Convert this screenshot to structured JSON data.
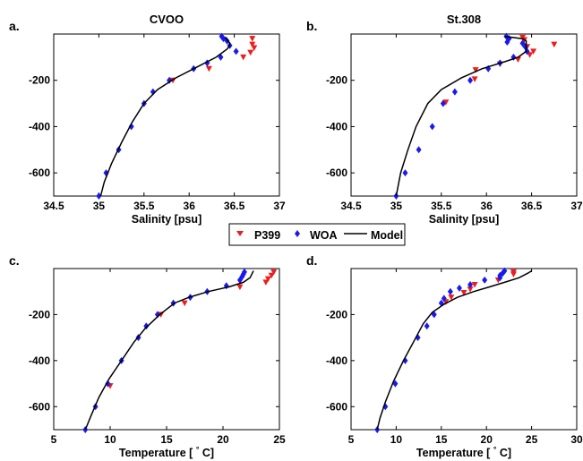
{
  "legend": {
    "items": [
      {
        "label": "P399",
        "marker": "triangle-down",
        "color": "#ee1c1c"
      },
      {
        "label": "WOA",
        "marker": "diamond",
        "color": "#1a1aee"
      },
      {
        "label": "Model",
        "marker": "line",
        "color": "#000000"
      }
    ]
  },
  "chart_data": [
    {
      "type": "scatter",
      "panel": "a.",
      "title": "CVOO",
      "xlabel": "Salinity [psu]",
      "ylabel": "",
      "xlim": [
        34.5,
        37
      ],
      "ylim": [
        -700,
        0
      ],
      "xticks": [
        34.5,
        35,
        35.5,
        36,
        36.5,
        37
      ],
      "yticks": [
        -200,
        -400,
        -600
      ],
      "series": [
        {
          "name": "P399",
          "marker": "triangle-down",
          "color": "#ee1c1c",
          "points": [
            [
              36.7,
              -20
            ],
            [
              36.7,
              -45
            ],
            [
              36.72,
              -60
            ],
            [
              36.68,
              -80
            ],
            [
              36.6,
              -100
            ],
            [
              36.22,
              -150
            ],
            [
              35.82,
              -200
            ]
          ]
        },
        {
          "name": "WOA",
          "marker": "diamond",
          "color": "#1a1aee",
          "points": [
            [
              36.36,
              -10
            ],
            [
              36.38,
              -20
            ],
            [
              36.42,
              -30
            ],
            [
              36.45,
              -50
            ],
            [
              36.52,
              -75
            ],
            [
              36.35,
              -100
            ],
            [
              36.2,
              -125
            ],
            [
              36.05,
              -150
            ],
            [
              35.78,
              -200
            ],
            [
              35.6,
              -250
            ],
            [
              35.5,
              -300
            ],
            [
              35.36,
              -400
            ],
            [
              35.22,
              -500
            ],
            [
              35.08,
              -600
            ],
            [
              35.0,
              -700
            ]
          ]
        },
        {
          "name": "Model",
          "type": "line",
          "color": "#000000",
          "points": [
            [
              36.4,
              -12
            ],
            [
              36.42,
              -25
            ],
            [
              36.45,
              -40
            ],
            [
              36.45,
              -50
            ],
            [
              36.42,
              -65
            ],
            [
              36.3,
              -100
            ],
            [
              36.1,
              -140
            ],
            [
              35.85,
              -190
            ],
            [
              35.65,
              -240
            ],
            [
              35.5,
              -300
            ],
            [
              35.37,
              -380
            ],
            [
              35.25,
              -470
            ],
            [
              35.14,
              -560
            ],
            [
              35.06,
              -640
            ],
            [
              35.02,
              -700
            ]
          ]
        }
      ]
    },
    {
      "type": "scatter",
      "panel": "b.",
      "title": "St.308",
      "xlabel": "Salinity [psu]",
      "ylabel": "",
      "xlim": [
        34.5,
        37
      ],
      "ylim": [
        -700,
        0
      ],
      "xticks": [
        34.5,
        35,
        35.5,
        36,
        36.5,
        37
      ],
      "yticks": [
        -200,
        -400,
        -600
      ],
      "series": [
        {
          "name": "P399",
          "marker": "triangle-down",
          "color": "#ee1c1c",
          "points": [
            [
              36.4,
              -15
            ],
            [
              36.42,
              -25
            ],
            [
              36.75,
              -45
            ],
            [
              36.45,
              -55
            ],
            [
              36.52,
              -75
            ],
            [
              36.48,
              -90
            ],
            [
              36.35,
              -110
            ],
            [
              36.15,
              -130
            ],
            [
              35.88,
              -155
            ],
            [
              35.87,
              -195
            ],
            [
              35.55,
              -295
            ]
          ]
        },
        {
          "name": "WOA",
          "marker": "diamond",
          "color": "#1a1aee",
          "points": [
            [
              36.22,
              -10
            ],
            [
              36.25,
              -20
            ],
            [
              36.23,
              -35
            ],
            [
              36.4,
              -40
            ],
            [
              36.43,
              -55
            ],
            [
              36.45,
              -75
            ],
            [
              36.3,
              -100
            ],
            [
              36.15,
              -125
            ],
            [
              36.02,
              -150
            ],
            [
              35.82,
              -200
            ],
            [
              35.65,
              -250
            ],
            [
              35.52,
              -300
            ],
            [
              35.4,
              -400
            ],
            [
              35.25,
              -500
            ],
            [
              35.1,
              -600
            ],
            [
              35.0,
              -700
            ]
          ]
        },
        {
          "name": "Model",
          "type": "line",
          "color": "#000000",
          "points": [
            [
              36.2,
              -10
            ],
            [
              36.4,
              -20
            ],
            [
              36.44,
              -30
            ],
            [
              36.44,
              -75
            ],
            [
              36.35,
              -100
            ],
            [
              36.2,
              -120
            ],
            [
              35.95,
              -150
            ],
            [
              35.72,
              -190
            ],
            [
              35.5,
              -240
            ],
            [
              35.35,
              -300
            ],
            [
              35.22,
              -400
            ],
            [
              35.13,
              -500
            ],
            [
              35.05,
              -600
            ],
            [
              35.0,
              -700
            ]
          ]
        }
      ]
    },
    {
      "type": "scatter",
      "panel": "c.",
      "title": "",
      "xlabel": "Temperature [°C]",
      "ylabel": "",
      "xlim": [
        5,
        25
      ],
      "ylim": [
        -700,
        0
      ],
      "xticks": [
        5,
        10,
        15,
        20,
        25
      ],
      "yticks": [
        -200,
        -400,
        -600
      ],
      "series": [
        {
          "name": "P399",
          "marker": "triangle-down",
          "color": "#ee1c1c",
          "points": [
            [
              24.5,
              -15
            ],
            [
              24.3,
              -30
            ],
            [
              24.0,
              -45
            ],
            [
              23.8,
              -60
            ],
            [
              21.5,
              -80
            ],
            [
              16.6,
              -150
            ],
            [
              14.5,
              -200
            ],
            [
              10.0,
              -510
            ]
          ]
        },
        {
          "name": "WOA",
          "marker": "diamond",
          "color": "#1a1aee",
          "points": [
            [
              21.9,
              -15
            ],
            [
              21.8,
              -25
            ],
            [
              21.7,
              -35
            ],
            [
              21.5,
              -50
            ],
            [
              20.3,
              -75
            ],
            [
              18.6,
              -100
            ],
            [
              17.1,
              -125
            ],
            [
              15.6,
              -150
            ],
            [
              14.2,
              -200
            ],
            [
              13.2,
              -250
            ],
            [
              12.5,
              -300
            ],
            [
              11.0,
              -400
            ],
            [
              9.8,
              -500
            ],
            [
              8.7,
              -600
            ],
            [
              7.8,
              -700
            ]
          ]
        },
        {
          "name": "Model",
          "type": "line",
          "color": "#000000",
          "points": [
            [
              22.7,
              -10
            ],
            [
              22.6,
              -20
            ],
            [
              22.4,
              -40
            ],
            [
              21.8,
              -60
            ],
            [
              20.5,
              -80
            ],
            [
              18.7,
              -100
            ],
            [
              17.0,
              -125
            ],
            [
              15.7,
              -150
            ],
            [
              14.4,
              -200
            ],
            [
              13.1,
              -260
            ],
            [
              12.1,
              -320
            ],
            [
              11.0,
              -400
            ],
            [
              9.9,
              -480
            ],
            [
              9.0,
              -560
            ],
            [
              8.3,
              -640
            ],
            [
              7.8,
              -700
            ]
          ]
        }
      ]
    },
    {
      "type": "scatter",
      "panel": "d.",
      "title": "",
      "xlabel": "Temperature [°C]",
      "ylabel": "",
      "xlim": [
        5,
        30
      ],
      "ylim": [
        -700,
        0
      ],
      "xticks": [
        5,
        10,
        15,
        20,
        25,
        30
      ],
      "yticks": [
        -200,
        -400,
        -600
      ],
      "series": [
        {
          "name": "P399",
          "marker": "triangle-down",
          "color": "#ee1c1c",
          "points": [
            [
              23.0,
              -15
            ],
            [
              23.0,
              -25
            ],
            [
              21.3,
              -50
            ],
            [
              18.7,
              -70
            ],
            [
              18.2,
              -90
            ],
            [
              17.5,
              -105
            ],
            [
              16.1,
              -125
            ],
            [
              15.5,
              -145
            ]
          ]
        },
        {
          "name": "WOA",
          "marker": "diamond",
          "color": "#1a1aee",
          "points": [
            [
              22.0,
              -10
            ],
            [
              21.8,
              -20
            ],
            [
              21.5,
              -30
            ],
            [
              21.5,
              -40
            ],
            [
              19.8,
              -50
            ],
            [
              18.2,
              -70
            ],
            [
              17.0,
              -85
            ],
            [
              16.0,
              -100
            ],
            [
              15.3,
              -130
            ],
            [
              15.0,
              -150
            ],
            [
              14.2,
              -200
            ],
            [
              13.4,
              -250
            ],
            [
              12.4,
              -300
            ],
            [
              11.0,
              -400
            ],
            [
              9.9,
              -500
            ],
            [
              8.8,
              -600
            ],
            [
              7.9,
              -700
            ]
          ]
        },
        {
          "name": "Model",
          "type": "line",
          "color": "#000000",
          "points": [
            [
              25.0,
              -10
            ],
            [
              24.6,
              -20
            ],
            [
              23.6,
              -40
            ],
            [
              22.0,
              -60
            ],
            [
              20.3,
              -80
            ],
            [
              18.6,
              -100
            ],
            [
              16.8,
              -125
            ],
            [
              15.3,
              -155
            ],
            [
              14.0,
              -190
            ],
            [
              13.0,
              -240
            ],
            [
              11.9,
              -320
            ],
            [
              10.8,
              -400
            ],
            [
              9.7,
              -490
            ],
            [
              8.8,
              -580
            ],
            [
              8.2,
              -650
            ],
            [
              7.9,
              -700
            ]
          ]
        }
      ]
    }
  ]
}
